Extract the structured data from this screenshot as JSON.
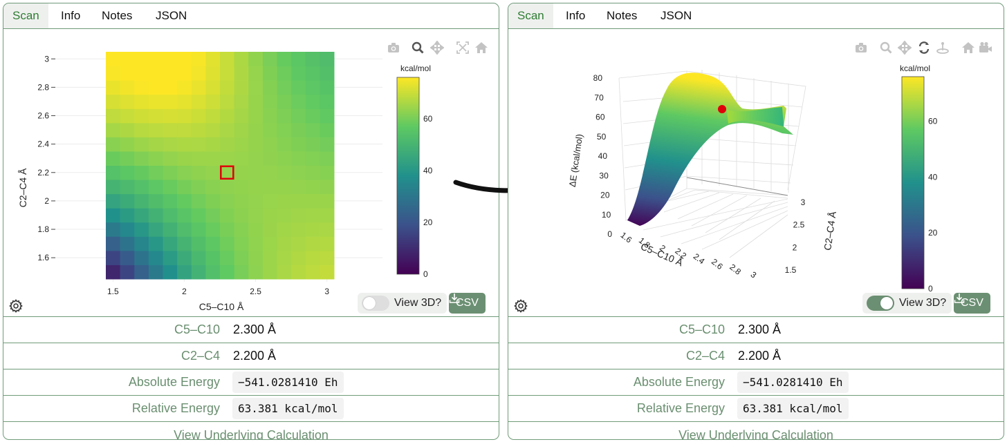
{
  "panels": [
    {
      "tabs": [
        {
          "label": "Scan",
          "active": true
        },
        {
          "label": "Info",
          "active": false
        },
        {
          "label": "Notes",
          "active": false
        },
        {
          "label": "JSON",
          "active": false
        }
      ],
      "toggle_label": "View 3D?",
      "toggle_on": false,
      "csv_label": "CSV",
      "rows": [
        {
          "label": "C5–C10",
          "value": "2.300 Å"
        },
        {
          "label": "C2–C4",
          "value": "2.200 Å"
        },
        {
          "label": "Absolute Energy",
          "value": "−541.0281410 Eh"
        },
        {
          "label": "Relative Energy",
          "value": "63.381 kcal/mol"
        }
      ],
      "link_label": "View Underlying Calculation"
    },
    {
      "tabs": [
        {
          "label": "Scan",
          "active": true
        },
        {
          "label": "Info",
          "active": false
        },
        {
          "label": "Notes",
          "active": false
        },
        {
          "label": "JSON",
          "active": false
        }
      ],
      "toggle_label": "View 3D?",
      "toggle_on": true,
      "csv_label": "CSV",
      "rows": [
        {
          "label": "C5–C10",
          "value": "2.300 Å"
        },
        {
          "label": "C2–C4",
          "value": "2.200 Å"
        },
        {
          "label": "Absolute Energy",
          "value": "−541.0281410 Eh"
        },
        {
          "label": "Relative Energy",
          "value": "63.381 kcal/mol"
        }
      ],
      "link_label": "View Underlying Calculation"
    }
  ],
  "chart_data": [
    {
      "type": "heatmap",
      "xlabel": "C5–C10 Å",
      "ylabel": "C2–C4 Å",
      "xticks": [
        "1.5",
        "2",
        "2.5",
        "3"
      ],
      "yticks": [
        "1.6",
        "1.8",
        "2",
        "2.2",
        "2.4",
        "2.6",
        "2.8",
        "3"
      ],
      "xlim": [
        1.45,
        3.05
      ],
      "ylim": [
        1.45,
        3.05
      ],
      "grid_n": 16,
      "colorbar_title": "kcal/mol",
      "colorbar_ticks": [
        "0",
        "20",
        "40",
        "60"
      ],
      "zlim": [
        0,
        76
      ],
      "selected_point": {
        "x": 2.3,
        "y": 2.2,
        "value": 63.381
      },
      "colorscale": [
        "#440154",
        "#3b528b",
        "#21918c",
        "#5ec962",
        "#fde725"
      ]
    },
    {
      "type": "surface",
      "xlabel": "C5–C10 Å",
      "ylabel": "C2–C4 Å",
      "zlabel": "ΔE (kcal/mol)",
      "xticks": [
        "1.6",
        "1.8",
        "2",
        "2.2",
        "2.4",
        "2.6",
        "2.8",
        "3"
      ],
      "yticks": [
        "1.5",
        "2",
        "2.5",
        "3"
      ],
      "zticks": [
        "0",
        "10",
        "20",
        "30",
        "40",
        "50",
        "60",
        "70",
        "80"
      ],
      "colorbar_title": "kcal/mol",
      "colorbar_ticks": [
        "0",
        "20",
        "40",
        "60"
      ],
      "selected_point": {
        "x": 2.3,
        "y": 2.2,
        "value": 63.381
      }
    }
  ],
  "colors": {
    "accent": "#6b8f72",
    "border": "#6f9a78",
    "label_green": "#6a8f70",
    "active_tab": "#2f7d32",
    "marker": "#e0000a"
  },
  "icons": {
    "modebar_2d": [
      "camera-icon",
      "zoom-icon",
      "pan-icon",
      "autoscale-icon",
      "home-icon"
    ],
    "modebar_3d": [
      "camera-icon",
      "zoom-icon",
      "pan-icon",
      "orbit-icon",
      "turntable-icon",
      "home-icon",
      "video-camera-icon"
    ]
  }
}
